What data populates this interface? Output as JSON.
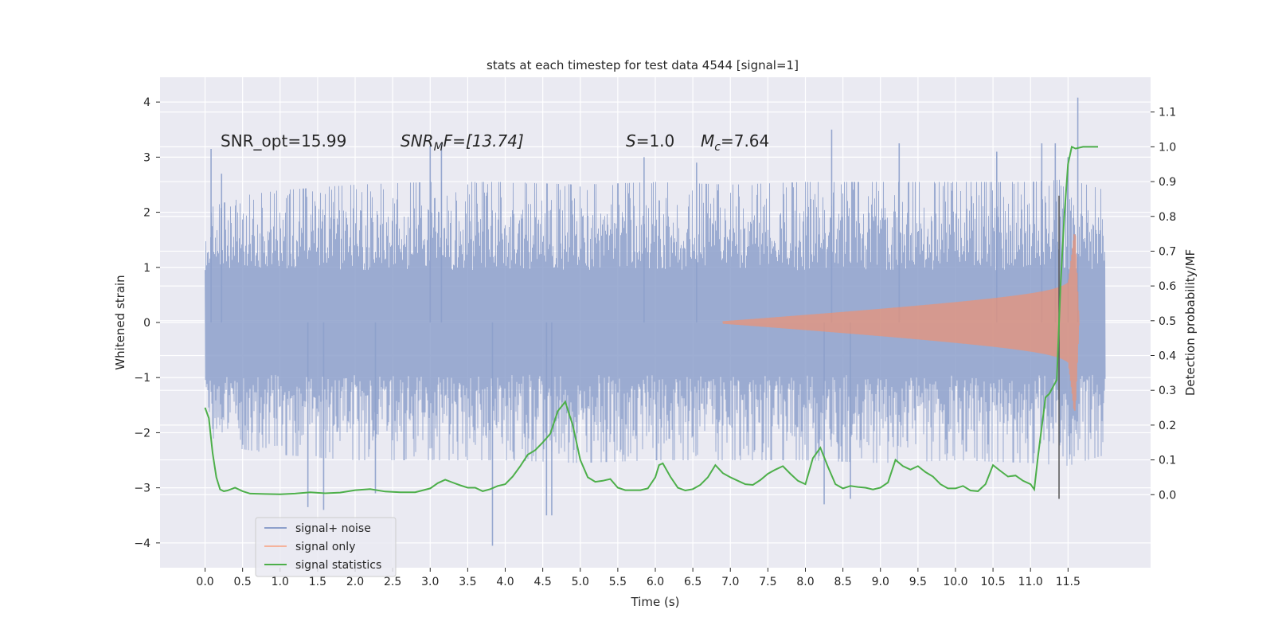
{
  "chart_data": {
    "type": "line",
    "title": "stats at each timestep for test data 4544 [signal=1]",
    "xlabel": "Time (s)",
    "ylabel": "Whitened strain",
    "ylabel_right": "Detection probability/MF",
    "xlim": [
      -0.6,
      12.6
    ],
    "ylim": [
      -4.45,
      4.45
    ],
    "ylim_right": [
      -0.21,
      1.2
    ],
    "x_ticks": [
      0.0,
      0.5,
      1.0,
      1.5,
      2.0,
      2.5,
      3.0,
      3.5,
      4.0,
      4.5,
      5.0,
      5.5,
      6.0,
      6.5,
      7.0,
      7.5,
      8.0,
      8.5,
      9.0,
      9.5,
      10.0,
      10.5,
      11.0,
      11.5
    ],
    "y_ticks": [
      -4,
      -3,
      -2,
      -1,
      0,
      1,
      2,
      3,
      4
    ],
    "y_ticks_right": [
      0.0,
      0.1,
      0.2,
      0.3,
      0.4,
      0.5,
      0.6,
      0.7,
      0.8,
      0.9,
      1.0,
      1.1
    ],
    "grid": true,
    "legend_position": "lower-left",
    "annotations": {
      "snr_opt": "SNR_opt=15.99",
      "snr_mf_base": "SNR",
      "snr_mf_sub": "M",
      "snr_mf_suffix": "F=[13.74]",
      "s_var": "S",
      "s_val": "=1.0",
      "mc_var": "M",
      "mc_sub": "c",
      "mc_val": "=7.64"
    },
    "series": [
      {
        "name": "signal+ noise",
        "color": "#8da0cb",
        "t_range": [
          0.0,
          12.0
        ],
        "envelope_upper_x": [
          0.0,
          0.1,
          0.5,
          1.0,
          2.0,
          3.0,
          4.0,
          5.0,
          6.0,
          7.0,
          8.0,
          9.0,
          10.0,
          11.0,
          11.5,
          12.0
        ],
        "envelope_upper_y": [
          1.4,
          2.1,
          2.3,
          2.4,
          2.5,
          2.55,
          2.55,
          2.5,
          2.55,
          2.5,
          2.55,
          2.55,
          2.55,
          2.55,
          2.6,
          2.4
        ],
        "envelope_lower_y": [
          -1.3,
          -2.1,
          -2.3,
          -2.4,
          -2.5,
          -2.5,
          -2.5,
          -2.55,
          -2.5,
          -2.5,
          -2.5,
          -2.55,
          -2.5,
          -2.55,
          -2.6,
          -2.4
        ],
        "spikes": [
          [
            0.08,
            3.15
          ],
          [
            0.22,
            2.7
          ],
          [
            1.37,
            -3.35
          ],
          [
            1.58,
            -3.4
          ],
          [
            2.27,
            -3.1
          ],
          [
            3.0,
            3.2
          ],
          [
            3.15,
            3.25
          ],
          [
            3.83,
            -4.05
          ],
          [
            4.55,
            -3.5
          ],
          [
            4.62,
            -3.5
          ],
          [
            5.85,
            3.0
          ],
          [
            6.55,
            2.9
          ],
          [
            8.25,
            -3.3
          ],
          [
            8.35,
            3.5
          ],
          [
            8.6,
            -3.2
          ],
          [
            9.25,
            3.25
          ],
          [
            10.55,
            3.1
          ],
          [
            11.15,
            3.25
          ],
          [
            11.33,
            3.25
          ],
          [
            11.5,
            3.0
          ],
          [
            11.63,
            4.08
          ]
        ]
      },
      {
        "name": "signal only",
        "color": "#fc8d62",
        "chirp": {
          "t_start": 6.9,
          "t_merge": 11.6,
          "t_end": 11.65,
          "amp_start": 0.02,
          "amp_peak": 1.6
        }
      },
      {
        "name": "signal statistics",
        "color": "#4daf4a",
        "axis": "right",
        "x": [
          0.0,
          0.05,
          0.1,
          0.15,
          0.2,
          0.25,
          0.3,
          0.4,
          0.5,
          0.6,
          0.8,
          1.0,
          1.2,
          1.4,
          1.6,
          1.8,
          2.0,
          2.2,
          2.4,
          2.6,
          2.8,
          3.0,
          3.1,
          3.2,
          3.3,
          3.4,
          3.5,
          3.6,
          3.7,
          3.8,
          3.9,
          4.0,
          4.1,
          4.2,
          4.3,
          4.4,
          4.5,
          4.6,
          4.7,
          4.8,
          4.9,
          5.0,
          5.1,
          5.2,
          5.3,
          5.4,
          5.5,
          5.6,
          5.7,
          5.8,
          5.9,
          6.0,
          6.05,
          6.1,
          6.2,
          6.3,
          6.4,
          6.5,
          6.6,
          6.7,
          6.8,
          6.9,
          7.0,
          7.1,
          7.2,
          7.3,
          7.4,
          7.5,
          7.6,
          7.7,
          7.8,
          7.9,
          8.0,
          8.1,
          8.2,
          8.3,
          8.4,
          8.5,
          8.6,
          8.7,
          8.8,
          8.9,
          9.0,
          9.1,
          9.2,
          9.3,
          9.4,
          9.5,
          9.6,
          9.7,
          9.8,
          9.9,
          10.0,
          10.1,
          10.2,
          10.3,
          10.4,
          10.5,
          10.6,
          10.7,
          10.8,
          10.9,
          11.0,
          11.05,
          11.1,
          11.2,
          11.25,
          11.3,
          11.35,
          11.4,
          11.45,
          11.5,
          11.55,
          11.6,
          11.7,
          11.8,
          11.9
        ],
        "values": [
          0.25,
          0.22,
          0.12,
          0.05,
          0.015,
          0.01,
          0.012,
          0.02,
          0.01,
          0.003,
          0.002,
          0.001,
          0.003,
          0.007,
          0.004,
          0.006,
          0.013,
          0.016,
          0.009,
          0.007,
          0.007,
          0.018,
          0.033,
          0.043,
          0.035,
          0.027,
          0.02,
          0.02,
          0.01,
          0.016,
          0.025,
          0.03,
          0.052,
          0.082,
          0.115,
          0.128,
          0.15,
          0.175,
          0.24,
          0.267,
          0.2,
          0.1,
          0.05,
          0.037,
          0.04,
          0.045,
          0.02,
          0.013,
          0.013,
          0.013,
          0.018,
          0.05,
          0.085,
          0.09,
          0.052,
          0.02,
          0.012,
          0.016,
          0.028,
          0.05,
          0.085,
          0.062,
          0.05,
          0.04,
          0.03,
          0.028,
          0.042,
          0.06,
          0.072,
          0.082,
          0.06,
          0.04,
          0.03,
          0.105,
          0.135,
          0.08,
          0.03,
          0.018,
          0.025,
          0.022,
          0.02,
          0.015,
          0.02,
          0.035,
          0.1,
          0.082,
          0.072,
          0.082,
          0.065,
          0.052,
          0.03,
          0.018,
          0.018,
          0.025,
          0.012,
          0.01,
          0.03,
          0.085,
          0.068,
          0.052,
          0.055,
          0.04,
          0.03,
          0.015,
          0.11,
          0.28,
          0.29,
          0.31,
          0.33,
          0.6,
          0.8,
          0.95,
          1.0,
          0.995,
          1.0,
          1.0,
          1.0
        ]
      }
    ],
    "vertical_marker": {
      "x": 11.38,
      "y_min": -3.2,
      "y_max": 2.3,
      "color": "#555555"
    }
  }
}
